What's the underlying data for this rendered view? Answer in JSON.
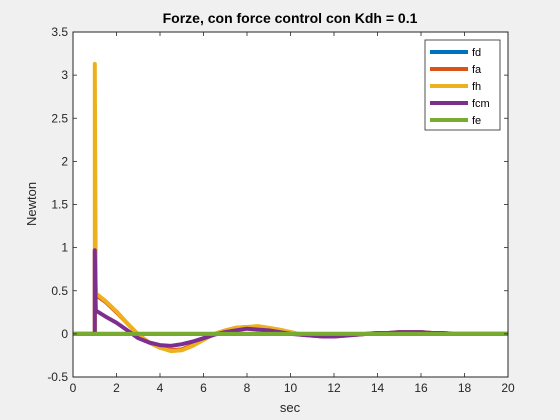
{
  "chart_data": {
    "type": "line",
    "title": "Forze, con force control con Kdh = 0.1",
    "xlabel": "sec",
    "ylabel": "Newton",
    "xlim": [
      0,
      20
    ],
    "ylim": [
      -0.5,
      3.5
    ],
    "xticks": [
      0,
      2,
      4,
      6,
      8,
      10,
      12,
      14,
      16,
      18,
      20
    ],
    "yticks": [
      -0.5,
      0,
      0.5,
      1,
      1.5,
      2,
      2.5,
      3,
      3.5
    ],
    "xtick_labels": [
      "0",
      "2",
      "4",
      "6",
      "8",
      "10",
      "12",
      "14",
      "16",
      "18",
      "20"
    ],
    "ytick_labels": [
      "-0.5",
      "0",
      "0.5",
      "1",
      "1.5",
      "2",
      "2.5",
      "3",
      "3.5"
    ],
    "grid": false,
    "legend_position": "top-right",
    "series": [
      {
        "name": "fd",
        "color": "#0072bd",
        "x": [
          0,
          20
        ],
        "y": [
          0,
          0
        ]
      },
      {
        "name": "fa",
        "color": "#d95319",
        "x": [
          0,
          1,
          1,
          1.05,
          1.5,
          2,
          2.5,
          3,
          3.5,
          4,
          4.5,
          5,
          5.5,
          6,
          6.5,
          7,
          7.5,
          8,
          8.5,
          9,
          9.5,
          10,
          10.5,
          11,
          11.5,
          12,
          12.5,
          13,
          13.5,
          14,
          14.5,
          15,
          15.5,
          16,
          16.5,
          17,
          17.5,
          18,
          19,
          20
        ],
        "y": [
          0,
          0,
          0.95,
          0.45,
          0.37,
          0.25,
          0.12,
          -0.01,
          -0.1,
          -0.16,
          -0.19,
          -0.18,
          -0.13,
          -0.06,
          0.0,
          0.04,
          0.07,
          0.08,
          0.08,
          0.06,
          0.04,
          0.02,
          -0.01,
          -0.02,
          -0.03,
          -0.03,
          -0.02,
          -0.01,
          0.0,
          0.01,
          0.01,
          0.02,
          0.02,
          0.02,
          0.01,
          0.01,
          0.0,
          0.0,
          0.0,
          0.0
        ]
      },
      {
        "name": "fh",
        "color": "#edb120",
        "x": [
          0,
          1,
          1,
          1.05,
          1.5,
          2,
          2.5,
          3,
          3.5,
          4,
          4.5,
          5,
          5.5,
          6,
          6.5,
          7,
          7.5,
          8,
          8.5,
          9,
          9.5,
          10,
          10.5,
          11,
          11.5,
          12,
          12.5,
          13,
          13.5,
          14,
          14.5,
          15,
          15.5,
          16,
          16.5,
          17,
          17.5,
          18,
          19,
          20
        ],
        "y": [
          0,
          0,
          3.13,
          0.47,
          0.38,
          0.26,
          0.12,
          -0.01,
          -0.1,
          -0.16,
          -0.2,
          -0.19,
          -0.14,
          -0.07,
          0.0,
          0.04,
          0.07,
          0.08,
          0.09,
          0.07,
          0.05,
          0.02,
          -0.01,
          -0.02,
          -0.03,
          -0.03,
          -0.02,
          -0.01,
          0.0,
          0.01,
          0.01,
          0.02,
          0.02,
          0.02,
          0.01,
          0.01,
          0.0,
          0.0,
          0.0,
          0.0
        ]
      },
      {
        "name": "fcm",
        "color": "#7e2f8e",
        "x": [
          0,
          1,
          1,
          1.05,
          1.5,
          2,
          2.5,
          3,
          3.5,
          4,
          4.5,
          5,
          5.5,
          6,
          6.5,
          7,
          7.5,
          8,
          8.5,
          9,
          9.5,
          10,
          10.5,
          11,
          11.5,
          12,
          12.5,
          13,
          13.5,
          14,
          14.5,
          15,
          15.5,
          16,
          16.5,
          17,
          17.5,
          18,
          19,
          20
        ],
        "y": [
          0,
          0,
          0.97,
          0.27,
          0.2,
          0.13,
          0.04,
          -0.05,
          -0.1,
          -0.13,
          -0.14,
          -0.12,
          -0.09,
          -0.05,
          -0.01,
          0.02,
          0.04,
          0.06,
          0.05,
          0.04,
          0.02,
          0.0,
          -0.01,
          -0.02,
          -0.03,
          -0.03,
          -0.02,
          -0.01,
          0.0,
          0.01,
          0.01,
          0.02,
          0.02,
          0.02,
          0.01,
          0.01,
          0.0,
          0.0,
          0.0,
          0.0
        ]
      },
      {
        "name": "fe",
        "color": "#77ac30",
        "x": [
          0,
          20
        ],
        "y": [
          0,
          0
        ]
      }
    ]
  }
}
